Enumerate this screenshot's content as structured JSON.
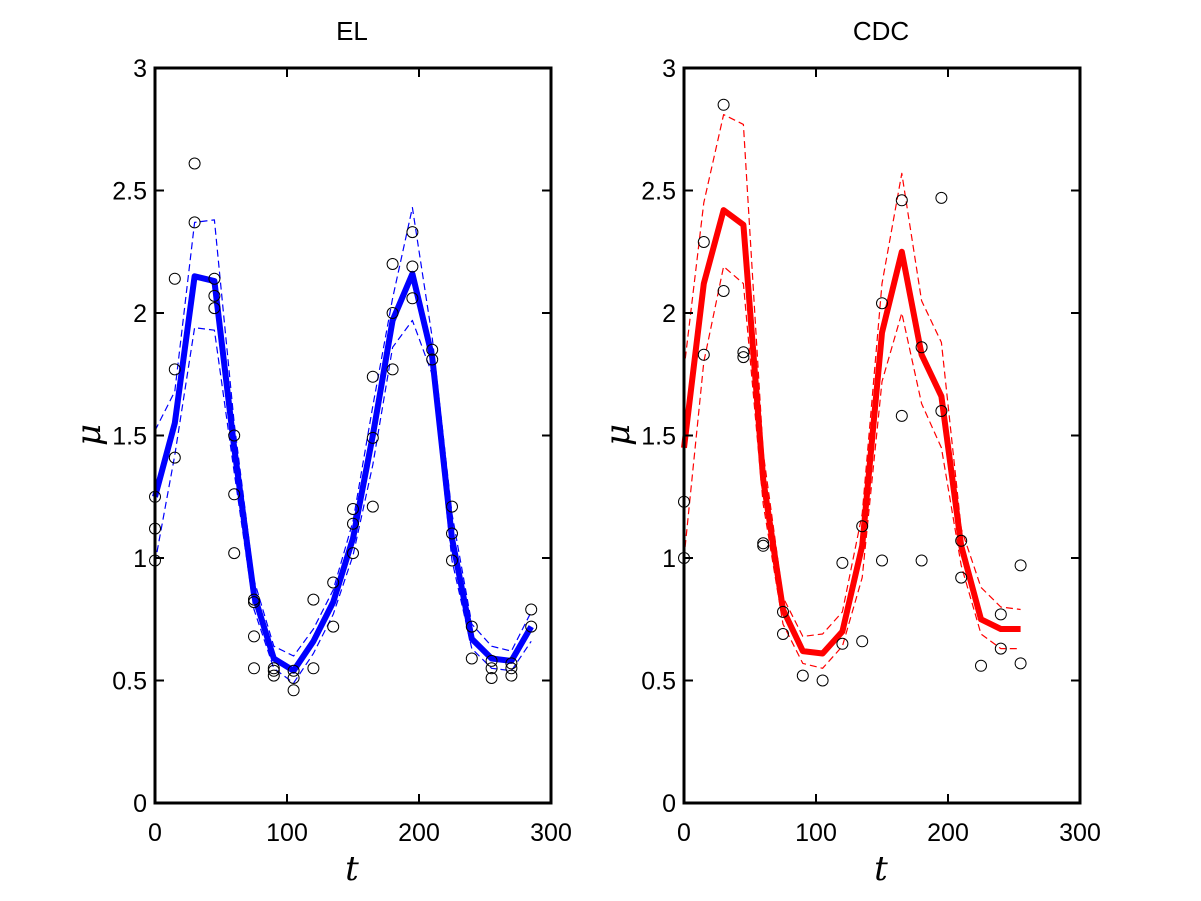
{
  "chart_data": [
    {
      "type": "line",
      "title": "EL",
      "xlabel": "t",
      "ylabel": "μ",
      "xlim": [
        0,
        300
      ],
      "ylim": [
        0,
        3
      ],
      "xticks": [
        "0",
        "100",
        "200",
        "300"
      ],
      "yticks": [
        "0",
        "0.5",
        "1",
        "1.5",
        "2",
        "2.5",
        "3"
      ],
      "color": "#0000ff",
      "grid": false,
      "series": [
        {
          "role": "mean",
          "x": [
            0,
            15,
            30,
            45,
            60,
            75,
            90,
            105,
            120,
            135,
            150,
            165,
            180,
            195,
            210,
            225,
            240,
            255,
            270,
            285
          ],
          "y": [
            1.25,
            1.55,
            2.15,
            2.13,
            1.45,
            0.85,
            0.59,
            0.54,
            0.66,
            0.82,
            1.08,
            1.5,
            1.97,
            2.16,
            1.82,
            1.08,
            0.67,
            0.59,
            0.58,
            0.72
          ]
        },
        {
          "role": "upper",
          "x": [
            0,
            15,
            30,
            45,
            60,
            75,
            90,
            105,
            120,
            135,
            150,
            165,
            180,
            195,
            210,
            225,
            240,
            255,
            270,
            285
          ],
          "y": [
            1.52,
            1.68,
            2.37,
            2.38,
            1.55,
            0.91,
            0.64,
            0.6,
            0.71,
            0.87,
            1.15,
            1.62,
            2.06,
            2.43,
            1.9,
            1.18,
            0.73,
            0.64,
            0.62,
            0.78
          ]
        },
        {
          "role": "lower",
          "x": [
            0,
            15,
            30,
            45,
            60,
            75,
            90,
            105,
            120,
            135,
            150,
            165,
            180,
            195,
            210,
            225,
            240,
            255,
            270,
            285
          ],
          "y": [
            0.98,
            1.42,
            1.94,
            1.93,
            1.35,
            0.79,
            0.55,
            0.49,
            0.61,
            0.77,
            1.01,
            1.38,
            1.86,
            1.97,
            1.75,
            0.99,
            0.63,
            0.55,
            0.54,
            0.66
          ]
        }
      ],
      "points": {
        "x": [
          0,
          0,
          0,
          15,
          15,
          15,
          30,
          30,
          45,
          45,
          45,
          60,
          60,
          60,
          75,
          75,
          75,
          75,
          90,
          90,
          90,
          105,
          105,
          105,
          120,
          120,
          135,
          135,
          150,
          150,
          150,
          165,
          165,
          165,
          180,
          180,
          180,
          195,
          195,
          195,
          210,
          210,
          225,
          225,
          225,
          240,
          240,
          255,
          255,
          255,
          270,
          270,
          270,
          285,
          285
        ],
        "y": [
          0.99,
          1.12,
          1.25,
          1.41,
          1.77,
          2.14,
          2.61,
          2.37,
          2.14,
          2.07,
          2.02,
          1.5,
          1.26,
          1.02,
          0.83,
          0.68,
          0.55,
          0.82,
          0.55,
          0.52,
          0.54,
          0.51,
          0.46,
          0.54,
          0.55,
          0.83,
          0.72,
          0.9,
          1.02,
          1.14,
          1.2,
          1.74,
          1.21,
          1.49,
          2.2,
          1.77,
          2.0,
          2.33,
          2.19,
          2.06,
          1.85,
          1.81,
          1.21,
          1.1,
          0.99,
          0.72,
          0.59,
          0.55,
          0.51,
          0.58,
          0.52,
          0.55,
          0.57,
          0.79,
          0.72
        ]
      }
    },
    {
      "type": "line",
      "title": "CDC",
      "xlabel": "t",
      "ylabel": "μ",
      "xlim": [
        0,
        300
      ],
      "ylim": [
        0,
        3
      ],
      "xticks": [
        "0",
        "100",
        "200",
        "300"
      ],
      "yticks": [
        "0",
        "0.5",
        "1",
        "1.5",
        "2",
        "2.5",
        "3"
      ],
      "color": "#ff0000",
      "grid": false,
      "series": [
        {
          "role": "mean",
          "x": [
            0,
            15,
            30,
            45,
            60,
            75,
            90,
            105,
            120,
            135,
            150,
            165,
            180,
            195,
            210,
            225,
            240,
            255
          ],
          "y": [
            1.45,
            2.12,
            2.42,
            2.36,
            1.32,
            0.79,
            0.62,
            0.61,
            0.7,
            1.05,
            1.92,
            2.25,
            1.83,
            1.66,
            1.05,
            0.75,
            0.71,
            0.71
          ]
        },
        {
          "role": "upper",
          "x": [
            0,
            15,
            30,
            45,
            60,
            75,
            90,
            105,
            120,
            135,
            150,
            165,
            180,
            195,
            210,
            225,
            240,
            255
          ],
          "y": [
            1.77,
            2.45,
            2.81,
            2.77,
            1.43,
            0.84,
            0.68,
            0.69,
            0.78,
            1.18,
            2.12,
            2.57,
            2.05,
            1.88,
            1.12,
            0.88,
            0.8,
            0.79
          ]
        },
        {
          "role": "lower",
          "x": [
            0,
            15,
            30,
            45,
            60,
            75,
            90,
            105,
            120,
            135,
            150,
            165,
            180,
            195,
            210,
            225,
            240,
            255
          ],
          "y": [
            1.0,
            1.8,
            2.19,
            2.12,
            1.22,
            0.73,
            0.57,
            0.55,
            0.64,
            0.92,
            1.72,
            2.0,
            1.63,
            1.45,
            0.97,
            0.69,
            0.63,
            0.63
          ]
        }
      ],
      "points": {
        "x": [
          0,
          0,
          15,
          15,
          30,
          30,
          45,
          45,
          60,
          60,
          75,
          75,
          90,
          105,
          120,
          120,
          135,
          135,
          150,
          150,
          165,
          165,
          180,
          180,
          195,
          195,
          210,
          210,
          225,
          240,
          240,
          255,
          255
        ],
        "y": [
          1.0,
          1.23,
          2.29,
          1.83,
          2.85,
          2.09,
          1.84,
          1.82,
          1.06,
          1.05,
          0.69,
          0.78,
          0.52,
          0.5,
          0.98,
          0.65,
          1.13,
          0.66,
          0.99,
          2.04,
          2.46,
          1.58,
          1.86,
          0.99,
          2.47,
          1.6,
          1.07,
          0.92,
          0.56,
          0.77,
          0.63,
          0.97,
          0.57
        ]
      }
    }
  ]
}
